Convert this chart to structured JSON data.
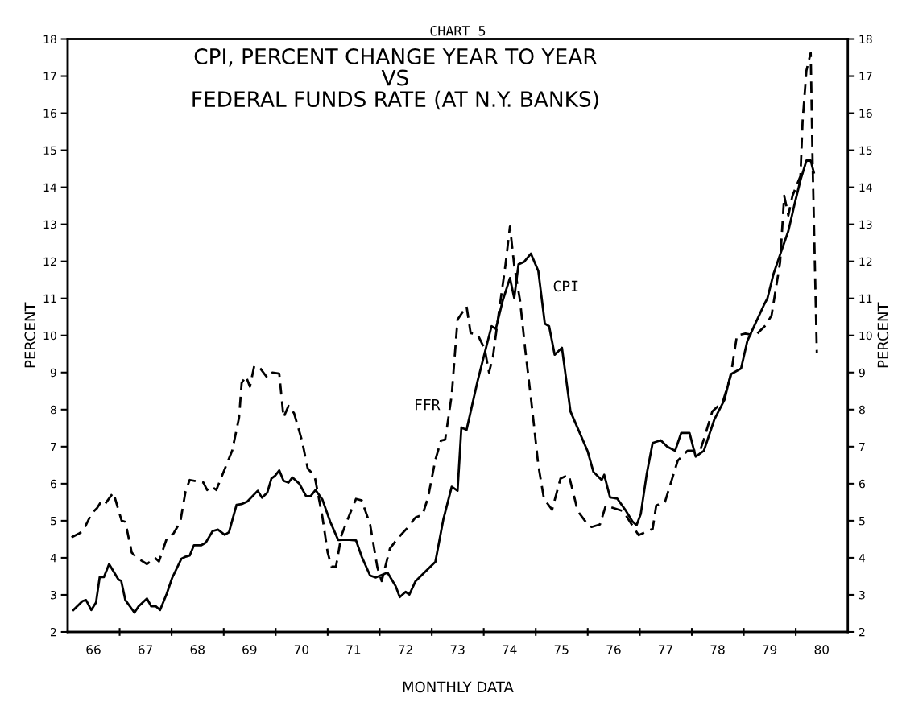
{
  "chart_data": {
    "type": "line",
    "title": "CHART 5",
    "subtitle": "CPI, PERCENT CHANGE YEAR TO YEAR\nVS\nFEDERAL FUNDS RATE (AT N.Y. BANKS)",
    "xlabel": "MONTHLY DATA",
    "ylabel": "PERCENT",
    "y2label": "PERCENT",
    "xlim": [
      "1966-01-01",
      "1981-01-01"
    ],
    "ylim": [
      2,
      18
    ],
    "y2lim": [
      2,
      18
    ],
    "xticks": [
      {
        "value": "1966-07-01",
        "label": "66"
      },
      {
        "value": "1967-01-01",
        "label": null
      },
      {
        "value": "1967-07-01",
        "label": "67"
      },
      {
        "value": "1968-01-01",
        "label": null
      },
      {
        "value": "1968-07-01",
        "label": "68"
      },
      {
        "value": "1969-01-01",
        "label": null
      },
      {
        "value": "1969-07-01",
        "label": "69"
      },
      {
        "value": "1970-01-01",
        "label": null
      },
      {
        "value": "1970-07-01",
        "label": "70"
      },
      {
        "value": "1971-01-01",
        "label": null
      },
      {
        "value": "1971-07-01",
        "label": "71"
      },
      {
        "value": "1972-01-01",
        "label": null
      },
      {
        "value": "1972-07-01",
        "label": "72"
      },
      {
        "value": "1973-01-01",
        "label": null
      },
      {
        "value": "1973-07-01",
        "label": "73"
      },
      {
        "value": "1974-01-01",
        "label": null
      },
      {
        "value": "1974-07-01",
        "label": "74"
      },
      {
        "value": "1975-01-01",
        "label": null
      },
      {
        "value": "1975-07-01",
        "label": "75"
      },
      {
        "value": "1976-01-01",
        "label": null
      },
      {
        "value": "1976-07-01",
        "label": "76"
      },
      {
        "value": "1977-01-01",
        "label": null
      },
      {
        "value": "1977-07-01",
        "label": "77"
      },
      {
        "value": "1978-01-01",
        "label": null
      },
      {
        "value": "1978-07-01",
        "label": "78"
      },
      {
        "value": "1979-01-01",
        "label": null
      },
      {
        "value": "1979-07-01",
        "label": "79"
      },
      {
        "value": "1980-01-01",
        "label": null
      },
      {
        "value": "1980-07-01",
        "label": "80"
      }
    ],
    "yticks": [
      2,
      3,
      4,
      5,
      6,
      7,
      8,
      9,
      10,
      11,
      12,
      13,
      14,
      15,
      16,
      17,
      18
    ],
    "y2ticks": [
      2,
      3,
      4,
      5,
      6,
      7,
      8,
      9,
      10,
      11,
      12,
      13,
      14,
      15,
      16,
      17,
      18
    ],
    "grid": false,
    "legend": false,
    "series": [
      {
        "name": "CPI",
        "color": "#000000",
        "line_style": "solid",
        "x": [
          "1966-02-10",
          "1966-04-15",
          "1966-05-10",
          "1966-06-16",
          "1966-07-19",
          "1966-08-14",
          "1966-09-13",
          "1966-10-19",
          "1966-12-24",
          "1967-01-12",
          "1967-02-10",
          "1967-04-15",
          "1967-05-14",
          "1967-07-12",
          "1967-08-11",
          "1967-09-13",
          "1967-10-12",
          "1967-11-28",
          "1968-01-04",
          "1968-03-09",
          "1968-04-08",
          "1968-05-07",
          "1968-06-06",
          "1968-07-28",
          "1968-08-28",
          "1968-10-15",
          "1968-11-21",
          "1969-01-08",
          "1969-02-07",
          "1969-04-01",
          "1969-05-07",
          "1969-06-16",
          "1969-08-28",
          "1969-09-27",
          "1969-11-03",
          "1969-12-02",
          "1969-12-27",
          "1970-01-26",
          "1970-02-25",
          "1970-04-01",
          "1970-04-28",
          "1970-06-16",
          "1970-08-03",
          "1970-09-02",
          "1970-10-08",
          "1970-11-25",
          "1971-01-19",
          "1971-03-16",
          "1971-05-21",
          "1971-07-19",
          "1971-08-28",
          "1971-10-26",
          "1971-12-06",
          "1972-02-25",
          "1972-04-23",
          "1972-05-21",
          "1972-07-01",
          "1972-07-28",
          "1972-09-09",
          "1972-10-19",
          "1973-01-26",
          "1973-03-24",
          "1973-05-21",
          "1973-07-01",
          "1973-07-28",
          "1973-09-02",
          "1973-11-18",
          "1974-01-19",
          "1974-02-25",
          "1974-03-27",
          "1974-05-14",
          "1974-07-04",
          "1974-08-03",
          "1974-09-02",
          "1974-10-12",
          "1974-11-28",
          "1975-01-19",
          "1975-03-06",
          "1975-04-05",
          "1975-05-14",
          "1975-07-04",
          "1975-09-02",
          "1975-10-28",
          "1976-01-01",
          "1976-02-10",
          "1976-04-08",
          "1976-04-26",
          "1976-06-06",
          "1976-07-26",
          "1976-09-20",
          "1976-11-10",
          "1976-12-09",
          "1977-01-08",
          "1977-02-18",
          "1977-04-01",
          "1977-05-28",
          "1977-07-12",
          "1977-09-06",
          "1977-10-19",
          "1977-12-16",
          "1978-01-28",
          "1978-03-27",
          "1978-06-09",
          "1978-08-18",
          "1978-10-01",
          "1978-12-13",
          "1979-01-26",
          "1979-03-24",
          "1979-05-21",
          "1979-06-16",
          "1979-07-28",
          "1979-09-13",
          "1979-11-10",
          "1979-12-24",
          "1980-02-03",
          "1980-03-16",
          "1980-04-15",
          "1980-05-07"
        ],
        "values": [
          2.59,
          2.83,
          2.86,
          2.59,
          2.79,
          3.48,
          3.48,
          3.83,
          3.41,
          3.38,
          2.86,
          2.52,
          2.69,
          2.9,
          2.69,
          2.69,
          2.59,
          3.03,
          3.45,
          3.97,
          4.03,
          4.06,
          4.34,
          4.34,
          4.41,
          4.72,
          4.76,
          4.62,
          4.69,
          5.43,
          5.45,
          5.52,
          5.81,
          5.62,
          5.76,
          6.14,
          6.21,
          6.36,
          6.08,
          6.03,
          6.17,
          6.0,
          5.66,
          5.66,
          5.83,
          5.57,
          4.97,
          4.48,
          4.49,
          4.47,
          4.03,
          3.52,
          3.47,
          3.6,
          3.23,
          2.94,
          3.08,
          3.01,
          3.37,
          3.52,
          3.89,
          5.05,
          5.92,
          5.81,
          7.52,
          7.45,
          8.76,
          9.7,
          10.25,
          10.18,
          10.94,
          11.55,
          11.01,
          11.92,
          11.99,
          12.21,
          11.74,
          10.32,
          10.25,
          9.48,
          9.67,
          7.95,
          7.45,
          6.87,
          6.32,
          6.1,
          6.24,
          5.63,
          5.6,
          5.3,
          4.98,
          4.88,
          5.19,
          6.25,
          7.1,
          7.17,
          7.0,
          6.89,
          7.37,
          7.37,
          6.73,
          6.89,
          7.74,
          8.26,
          8.95,
          9.11,
          9.85,
          10.33,
          10.81,
          11.0,
          11.65,
          12.18,
          12.82,
          13.55,
          14.19,
          14.72,
          14.72,
          14.4
        ]
      },
      {
        "name": "FFR",
        "color": "#000000",
        "line_style": "dashed",
        "x": [
          "1966-01-28",
          "1966-03-24",
          "1966-04-19",
          "1966-06-20",
          "1966-07-26",
          "1966-08-25",
          "1966-09-20",
          "1966-11-18",
          "1967-01-15",
          "1967-02-10",
          "1967-03-27",
          "1967-05-03",
          "1967-07-12",
          "1967-09-06",
          "1967-10-04",
          "1967-11-28",
          "1968-01-15",
          "1968-03-02",
          "1968-04-08",
          "1968-05-07",
          "1968-08-11",
          "1968-09-06",
          "1968-10-04",
          "1968-11-10",
          "1968-12-27",
          "1969-03-02",
          "1969-04-19",
          "1969-05-07",
          "1969-06-06",
          "1969-07-04",
          "1969-08-03",
          "1969-09-09",
          "1969-11-03",
          "1969-12-09",
          "1970-01-26",
          "1970-02-25",
          "1970-04-01",
          "1970-05-10",
          "1970-07-04",
          "1970-08-14",
          "1970-10-01",
          "1970-11-25",
          "1971-01-01",
          "1971-01-28",
          "1971-02-28",
          "1971-04-08",
          "1971-06-06",
          "1971-07-19",
          "1971-08-28",
          "1971-10-26",
          "1971-12-16",
          "1972-01-15",
          "1972-03-13",
          "1972-05-10",
          "1972-07-12",
          "1972-09-09",
          "1972-10-28",
          "1972-12-06",
          "1973-01-26",
          "1973-03-06",
          "1973-04-05",
          "1973-05-21",
          "1973-07-01",
          "1973-09-02",
          "1973-10-01",
          "1973-11-18",
          "1974-01-08",
          "1974-02-07",
          "1974-03-06",
          "1974-04-05",
          "1974-06-02",
          "1974-07-04",
          "1974-08-03",
          "1974-09-13",
          "1974-10-19",
          "1974-12-09",
          "1975-01-19",
          "1975-02-28",
          "1975-04-26",
          "1975-06-24",
          "1975-08-21",
          "1975-10-23",
          "1976-01-01",
          "1976-01-28",
          "1976-03-27",
          "1976-05-07",
          "1976-07-04",
          "1976-09-06",
          "1976-11-25",
          "1976-12-24",
          "1977-04-01",
          "1977-04-26",
          "1977-06-27",
          "1977-09-24",
          "1977-12-02",
          "1978-02-28",
          "1978-03-27",
          "1978-05-25",
          "1978-08-07",
          "1978-10-01",
          "1978-11-14",
          "1979-01-12",
          "1979-03-24",
          "1979-06-02",
          "1979-07-15",
          "1979-09-13",
          "1979-10-12",
          "1979-11-10",
          "1979-12-09",
          "1980-02-03",
          "1980-02-18",
          "1980-03-16",
          "1980-04-15",
          "1980-04-28",
          "1980-05-28"
        ],
        "values": [
          4.55,
          4.66,
          4.72,
          5.21,
          5.34,
          5.52,
          5.45,
          5.76,
          5.0,
          4.97,
          4.14,
          4.0,
          3.83,
          4.0,
          3.9,
          4.52,
          4.66,
          4.97,
          5.79,
          6.1,
          6.03,
          5.83,
          5.93,
          5.83,
          6.28,
          6.9,
          7.79,
          8.72,
          8.9,
          8.62,
          9.17,
          9.14,
          8.86,
          9.0,
          8.97,
          7.79,
          8.1,
          7.9,
          7.17,
          6.41,
          6.21,
          5.1,
          4.14,
          3.76,
          3.76,
          4.61,
          5.19,
          5.59,
          5.55,
          4.9,
          3.74,
          3.37,
          4.25,
          4.54,
          4.8,
          5.09,
          5.16,
          5.63,
          6.64,
          7.16,
          7.19,
          8.39,
          10.43,
          10.79,
          10.06,
          10.03,
          9.63,
          9.0,
          9.41,
          10.28,
          11.89,
          12.94,
          11.89,
          10.94,
          9.63,
          7.95,
          6.5,
          5.59,
          5.3,
          6.14,
          6.24,
          5.26,
          4.9,
          4.83,
          4.9,
          5.41,
          5.34,
          5.26,
          4.78,
          4.61,
          4.78,
          5.41,
          5.51,
          6.62,
          6.89,
          6.89,
          7.2,
          7.95,
          8.21,
          8.9,
          10.0,
          10.05,
          10.0,
          10.27,
          10.54,
          11.97,
          13.77,
          13.24,
          13.77,
          14.3,
          15.78,
          17.15,
          17.63,
          14.72,
          9.53
        ]
      }
    ]
  }
}
